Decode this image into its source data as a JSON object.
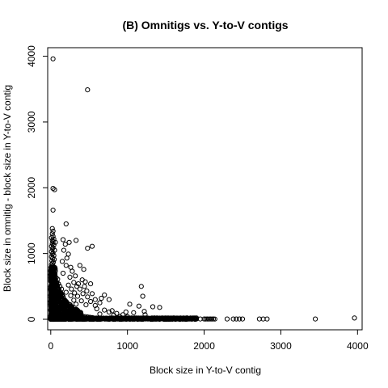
{
  "chart_data": {
    "type": "scatter",
    "title": "(B) Omnitigs vs. Y-to-V contigs",
    "xlabel": "Block size in Y-to-V contig",
    "ylabel": "Block size in omnitig - block size in Y-to-V contig",
    "xlim": [
      -40,
      4060
    ],
    "ylim": [
      -160,
      4130
    ],
    "x_ticks": [
      0,
      1000,
      2000,
      3000,
      4000
    ],
    "y_ticks": [
      0,
      1000,
      2000,
      3000,
      4000
    ],
    "x_tick_labels": [
      "0",
      "1000",
      "2000",
      "3000",
      "4000"
    ],
    "y_tick_labels": [
      "0",
      "1000",
      "2000",
      "3000",
      "4000"
    ],
    "grid": false,
    "legend": "none",
    "series": [
      {
        "marker": "open-circle",
        "points": [
          [
            30,
            3960
          ],
          [
            480,
            3490
          ],
          [
            30,
            1990
          ],
          [
            50,
            1970
          ],
          [
            30,
            1660
          ],
          [
            20,
            1380
          ],
          [
            30,
            1340
          ],
          [
            20,
            1300
          ],
          [
            30,
            1260
          ],
          [
            10,
            1240
          ],
          [
            40,
            1220
          ],
          [
            20,
            1200
          ],
          [
            30,
            1180
          ],
          [
            60,
            1170
          ],
          [
            20,
            1150
          ],
          [
            40,
            1130
          ],
          [
            10,
            1110
          ],
          [
            30,
            1090
          ],
          [
            20,
            1070
          ],
          [
            50,
            1050
          ],
          [
            10,
            1030
          ],
          [
            30,
            1010
          ],
          [
            20,
            990
          ],
          [
            40,
            970
          ],
          [
            10,
            950
          ],
          [
            25,
            930
          ],
          [
            45,
            910
          ],
          [
            15,
            890
          ],
          [
            35,
            870
          ],
          [
            20,
            850
          ],
          [
            10,
            830
          ],
          [
            30,
            810
          ],
          [
            50,
            790
          ],
          [
            20,
            770
          ],
          [
            40,
            750
          ],
          [
            60,
            730
          ],
          [
            15,
            710
          ],
          [
            35,
            690
          ],
          [
            55,
            670
          ],
          [
            25,
            650
          ],
          [
            70,
            630
          ],
          [
            90,
            610
          ],
          [
            10,
            600
          ],
          [
            45,
            580
          ],
          [
            80,
            560
          ],
          [
            100,
            540
          ],
          [
            30,
            520
          ],
          [
            120,
            500
          ],
          [
            60,
            480
          ],
          [
            140,
            460
          ],
          [
            200,
            1450
          ],
          [
            160,
            1210
          ],
          [
            240,
            1170
          ],
          [
            190,
            1140
          ],
          [
            330,
            1200
          ],
          [
            540,
            1110
          ],
          [
            480,
            1080
          ],
          [
            170,
            1050
          ],
          [
            230,
            990
          ],
          [
            210,
            930
          ],
          [
            150,
            880
          ],
          [
            200,
            820
          ],
          [
            260,
            790
          ],
          [
            380,
            820
          ],
          [
            430,
            760
          ],
          [
            280,
            730
          ],
          [
            320,
            660
          ],
          [
            160,
            700
          ],
          [
            250,
            640
          ],
          [
            410,
            600
          ],
          [
            450,
            570
          ],
          [
            300,
            560
          ],
          [
            360,
            540
          ],
          [
            230,
            520
          ],
          [
            340,
            500
          ],
          [
            440,
            500
          ],
          [
            520,
            540
          ],
          [
            270,
            460
          ],
          [
            380,
            460
          ],
          [
            470,
            430
          ],
          [
            200,
            410
          ],
          [
            310,
            400
          ],
          [
            420,
            390
          ],
          [
            540,
            390
          ],
          [
            260,
            360
          ],
          [
            350,
            350
          ],
          [
            480,
            340
          ],
          [
            700,
            370
          ],
          [
            660,
            320
          ],
          [
            760,
            300
          ],
          [
            580,
            300
          ],
          [
            300,
            290
          ],
          [
            400,
            280
          ],
          [
            520,
            270
          ],
          [
            640,
            250
          ],
          [
            200,
            250
          ],
          [
            330,
            230
          ],
          [
            460,
            220
          ],
          [
            580,
            210
          ],
          [
            250,
            200
          ],
          [
            1180,
            500
          ],
          [
            1200,
            350
          ],
          [
            1030,
            230
          ],
          [
            1150,
            200
          ],
          [
            1220,
            120
          ],
          [
            980,
            110
          ],
          [
            1080,
            100
          ],
          [
            1330,
            190
          ],
          [
            1420,
            180
          ],
          [
            1230,
            70
          ],
          [
            860,
            90
          ],
          [
            940,
            70
          ],
          [
            800,
            130
          ],
          [
            900,
            40
          ],
          [
            1000,
            40
          ],
          [
            600,
            160
          ],
          [
            700,
            140
          ],
          [
            760,
            110
          ],
          [
            820,
            60
          ],
          [
            640,
            80
          ],
          [
            100,
            380
          ],
          [
            120,
            340
          ],
          [
            140,
            300
          ],
          [
            90,
            270
          ],
          [
            110,
            230
          ],
          [
            130,
            200
          ],
          [
            160,
            170
          ],
          [
            180,
            150
          ],
          [
            210,
            130
          ],
          [
            240,
            110
          ],
          [
            270,
            95
          ],
          [
            300,
            80
          ],
          [
            330,
            70
          ],
          [
            360,
            60
          ],
          [
            390,
            50
          ],
          [
            420,
            45
          ],
          [
            450,
            40
          ],
          [
            480,
            35
          ],
          [
            510,
            30
          ],
          [
            540,
            25
          ],
          [
            1500,
            20
          ],
          [
            1550,
            10
          ],
          [
            1600,
            15
          ],
          [
            1650,
            8
          ],
          [
            1700,
            5
          ],
          [
            1750,
            10
          ],
          [
            1800,
            5
          ],
          [
            1850,
            8
          ],
          [
            1900,
            5
          ],
          [
            1950,
            5
          ],
          [
            2000,
            5
          ],
          [
            2020,
            3
          ],
          [
            2040,
            5
          ],
          [
            2060,
            3
          ],
          [
            2080,
            5
          ],
          [
            2100,
            3
          ],
          [
            2120,
            5
          ],
          [
            2140,
            3
          ],
          [
            2300,
            5
          ],
          [
            2380,
            5
          ],
          [
            2420,
            5
          ],
          [
            2460,
            5
          ],
          [
            2500,
            5
          ],
          [
            2720,
            5
          ],
          [
            2770,
            5
          ],
          [
            2820,
            5
          ],
          [
            3450,
            5
          ],
          [
            3960,
            20
          ]
        ],
        "dense_region": {
          "x_range": [
            0,
            1900
          ],
          "y_near_zero": true,
          "description": "many overlapping points along the bottom edge from x=0 to about x=1900 and along the left edge from y=0 to about y=800"
        }
      }
    ]
  }
}
